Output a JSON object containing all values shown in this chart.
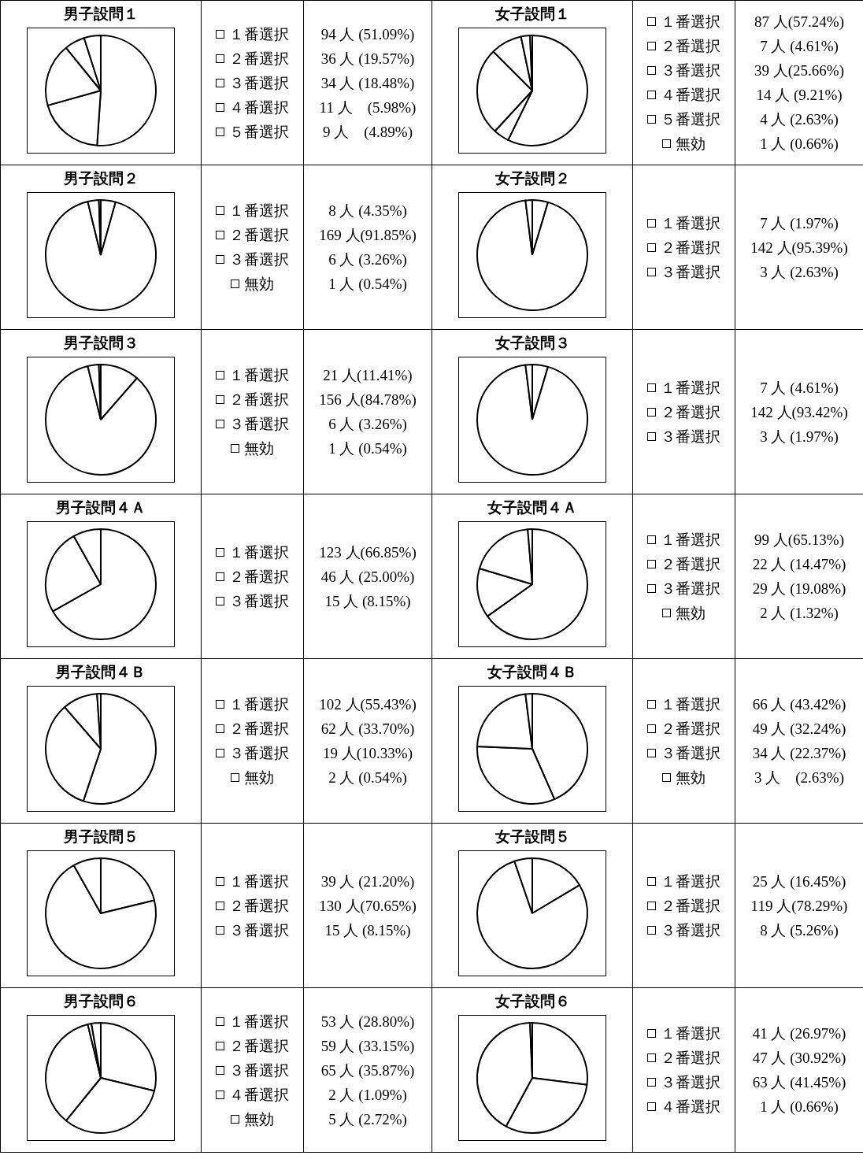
{
  "chart_data": [
    {
      "type": "pie",
      "title": "男子設問１",
      "legend": "right",
      "categories": [
        "１番選択",
        "２番選択",
        "３番選択",
        "４番選択",
        "５番選択"
      ],
      "values": [
        94,
        36,
        34,
        11,
        9
      ],
      "value_labels": [
        "94 人 (51.09%)",
        "36 人 (19.57%)",
        "34 人 (18.48%)",
        "11 人　(5.98%)",
        "9 人　(4.89%)"
      ],
      "colors": [
        "#ffffff",
        "#ffffff",
        "#ffffff",
        "#ffffff",
        "#ffffff"
      ]
    },
    {
      "type": "pie",
      "title": "女子設問１",
      "legend": "right",
      "categories": [
        "１番選択",
        "２番選択",
        "３番選択",
        "４番選択",
        "５番選択",
        "無効"
      ],
      "values": [
        87,
        7,
        39,
        14,
        4,
        1
      ],
      "value_labels": [
        "87 人(57.24%)",
        "7 人 (4.61%)",
        "39 人(25.66%)",
        "14 人 (9.21%)",
        "4 人 (2.63%)",
        "1 人 (0.66%)"
      ],
      "colors": [
        "#ffffff",
        "#ffffff",
        "#ffffff",
        "#ffffff",
        "#ffffff",
        "#ffffff"
      ]
    },
    {
      "type": "pie",
      "title": "男子設問２",
      "legend": "right",
      "categories": [
        "１番選択",
        "２番選択",
        "３番選択",
        "無効"
      ],
      "values": [
        8,
        169,
        6,
        1
      ],
      "value_labels": [
        "8 人 (4.35%)",
        "169 人(91.85%)",
        "6 人 (3.26%)",
        "1 人 (0.54%)"
      ],
      "colors": [
        "#ffffff",
        "#ffffff",
        "#ffffff",
        "#ffffff"
      ]
    },
    {
      "type": "pie",
      "title": "女子設問２",
      "legend": "right",
      "categories": [
        "１番選択",
        "２番選択",
        "３番選択"
      ],
      "values": [
        7,
        142,
        3
      ],
      "value_labels": [
        "7 人 (1.97%)",
        "142 人(95.39%)",
        "3 人 (2.63%)"
      ],
      "colors": [
        "#ffffff",
        "#ffffff",
        "#ffffff"
      ]
    },
    {
      "type": "pie",
      "title": "男子設問３",
      "legend": "right",
      "categories": [
        "１番選択",
        "２番選択",
        "３番選択",
        "無効"
      ],
      "values": [
        21,
        156,
        6,
        1
      ],
      "value_labels": [
        "21 人(11.41%)",
        "156 人(84.78%)",
        "6 人 (3.26%)",
        "1 人 (0.54%)"
      ],
      "colors": [
        "#ffffff",
        "#ffffff",
        "#ffffff",
        "#ffffff"
      ]
    },
    {
      "type": "pie",
      "title": "女子設問３",
      "legend": "right",
      "categories": [
        "１番選択",
        "２番選択",
        "３番選択"
      ],
      "values": [
        7,
        142,
        3
      ],
      "value_labels": [
        "7 人 (4.61%)",
        "142 人(93.42%)",
        "3 人 (1.97%)"
      ],
      "colors": [
        "#ffffff",
        "#ffffff",
        "#ffffff"
      ]
    },
    {
      "type": "pie",
      "title": "男子設問４Ａ",
      "legend": "right",
      "categories": [
        "１番選択",
        "２番選択",
        "３番選択"
      ],
      "values": [
        123,
        46,
        15
      ],
      "value_labels": [
        "123 人(66.85%)",
        "46 人 (25.00%)",
        "15 人 (8.15%)"
      ],
      "colors": [
        "#ffffff",
        "#ffffff",
        "#ffffff"
      ]
    },
    {
      "type": "pie",
      "title": "女子設問４Ａ",
      "legend": "right",
      "categories": [
        "１番選択",
        "２番選択",
        "３番選択",
        "無効"
      ],
      "values": [
        99,
        22,
        29,
        2
      ],
      "value_labels": [
        "99 人(65.13%)",
        "22 人 (14.47%)",
        "29 人 (19.08%)",
        "2 人 (1.32%)"
      ],
      "colors": [
        "#ffffff",
        "#ffffff",
        "#ffffff",
        "#ffffff"
      ]
    },
    {
      "type": "pie",
      "title": "男子設問４Ｂ",
      "legend": "right",
      "categories": [
        "１番選択",
        "２番選択",
        "３番選択",
        "無効"
      ],
      "values": [
        102,
        62,
        19,
        2
      ],
      "value_labels": [
        "102 人(55.43%)",
        "62 人 (33.70%)",
        "19 人(10.33%)",
        "2 人 (0.54%)"
      ],
      "colors": [
        "#ffffff",
        "#ffffff",
        "#ffffff",
        "#ffffff"
      ]
    },
    {
      "type": "pie",
      "title": "女子設問４Ｂ",
      "legend": "right",
      "categories": [
        "１番選択",
        "２番選択",
        "３番選択",
        "無効"
      ],
      "values": [
        66,
        49,
        34,
        3
      ],
      "value_labels": [
        "66 人 (43.42%)",
        "49 人 (32.24%)",
        "34 人 (22.37%)",
        "3 人　(2.63%)"
      ],
      "colors": [
        "#ffffff",
        "#ffffff",
        "#ffffff",
        "#ffffff"
      ]
    },
    {
      "type": "pie",
      "title": "男子設問５",
      "legend": "right",
      "categories": [
        "１番選択",
        "２番選択",
        "３番選択"
      ],
      "values": [
        39,
        130,
        15
      ],
      "value_labels": [
        "39 人 (21.20%)",
        "130 人(70.65%)",
        "15 人 (8.15%)"
      ],
      "colors": [
        "#ffffff",
        "#ffffff",
        "#ffffff"
      ]
    },
    {
      "type": "pie",
      "title": "女子設問５",
      "legend": "right",
      "categories": [
        "１番選択",
        "２番選択",
        "３番選択"
      ],
      "values": [
        25,
        119,
        8
      ],
      "value_labels": [
        "25 人 (16.45%)",
        "119 人(78.29%)",
        "8 人 (5.26%)"
      ],
      "colors": [
        "#ffffff",
        "#ffffff",
        "#ffffff"
      ]
    },
    {
      "type": "pie",
      "title": "男子設問６",
      "legend": "right",
      "categories": [
        "１番選択",
        "２番選択",
        "３番選択",
        "４番選択",
        "無効"
      ],
      "values": [
        53,
        59,
        65,
        2,
        5
      ],
      "value_labels": [
        "53 人 (28.80%)",
        "59 人 (33.15%)",
        "65 人 (35.87%)",
        "2 人 (1.09%)",
        "5 人 (2.72%)"
      ],
      "colors": [
        "#ffffff",
        "#ffffff",
        "#ffffff",
        "#ffffff",
        "#ffffff"
      ]
    },
    {
      "type": "pie",
      "title": "女子設問６",
      "legend": "right",
      "categories": [
        "１番選択",
        "２番選択",
        "３番選択",
        "４番選択"
      ],
      "values": [
        41,
        47,
        63,
        1
      ],
      "value_labels": [
        "41 人 (26.97%)",
        "47 人 (30.92%)",
        "63 人 (41.45%)",
        "1 人 (0.66%)"
      ],
      "colors": [
        "#ffffff",
        "#ffffff",
        "#ffffff",
        "#ffffff"
      ]
    }
  ]
}
